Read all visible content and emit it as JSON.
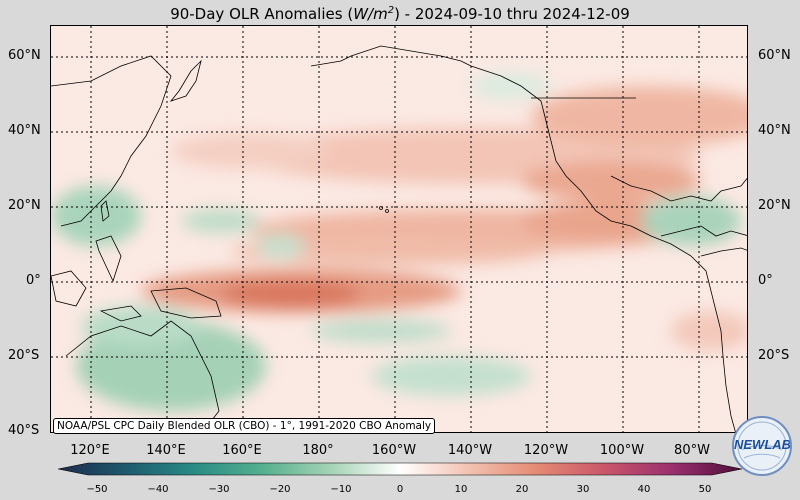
{
  "title": {
    "prefix": "90-Day OLR Anomalies (",
    "unit_base": "W/m",
    "unit_exp": "2",
    "suffix": ") - 2024-09-10 thru 2024-12-09"
  },
  "map": {
    "lat_labels": [
      "60°N",
      "40°N",
      "20°N",
      "0°",
      "20°S",
      "40°S"
    ],
    "lon_labels": [
      "120°E",
      "140°E",
      "160°E",
      "180°",
      "160°W",
      "140°W",
      "120°W",
      "100°W",
      "80°W"
    ],
    "credit": "NOAA/PSL CPC Daily Blended OLR (CBO) - 1°, 1991-2020 CBO Anomaly"
  },
  "colorbar": {
    "ticks": [
      "−50",
      "−40",
      "−30",
      "−20",
      "−10",
      "0",
      "10",
      "20",
      "30",
      "40",
      "50"
    ],
    "negative_color": "#1f3a55",
    "mid_negative_color": "#2f9a86",
    "neutral_color": "#ffffff",
    "positive_color": "#e06a50",
    "extreme_positive_color": "#5a0f45"
  },
  "logo": {
    "text": "NEWLAB",
    "icon": "noaa-psl-logo"
  }
}
